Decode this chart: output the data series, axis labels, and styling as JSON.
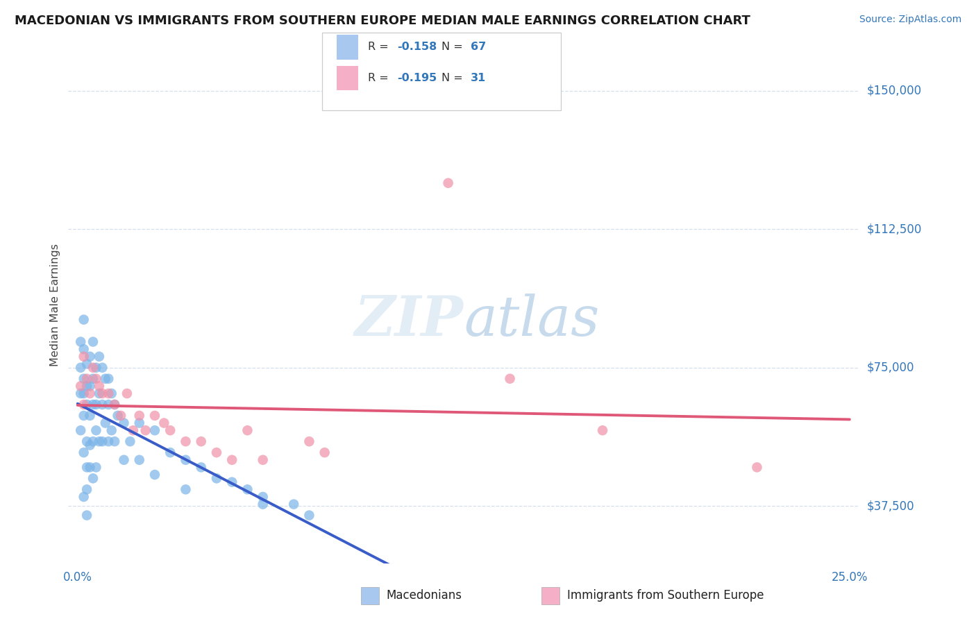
{
  "title": "MACEDONIAN VS IMMIGRANTS FROM SOUTHERN EUROPE MEDIAN MALE EARNINGS CORRELATION CHART",
  "source": "Source: ZipAtlas.com",
  "ylabel": "Median Male Earnings",
  "ytick_values": [
    37500,
    75000,
    112500,
    150000
  ],
  "ytick_labels": [
    "$37,500",
    "$75,000",
    "$112,500",
    "$150,000"
  ],
  "xlim": [
    0.0,
    0.25
  ],
  "ylim": [
    22000,
    162000
  ],
  "legend_color_mac": "#a8c8f0",
  "legend_color_imm": "#f5b0c8",
  "macedonian_color": "#7ab4e8",
  "immigrant_color": "#f090a8",
  "trendline_mac_solid": "#3a5cc8",
  "trendline_imm_solid": "#e05878",
  "trendline_dashed": "#90b8e0",
  "label_mac": "Macedonians",
  "label_imm": "Immigrants from Southern Europe",
  "mac_x": [
    0.001,
    0.001,
    0.001,
    0.001,
    0.002,
    0.002,
    0.002,
    0.002,
    0.002,
    0.002,
    0.002,
    0.003,
    0.003,
    0.003,
    0.003,
    0.003,
    0.003,
    0.003,
    0.004,
    0.004,
    0.004,
    0.004,
    0.004,
    0.005,
    0.005,
    0.005,
    0.005,
    0.005,
    0.006,
    0.006,
    0.006,
    0.006,
    0.007,
    0.007,
    0.007,
    0.008,
    0.008,
    0.008,
    0.009,
    0.009,
    0.01,
    0.01,
    0.01,
    0.011,
    0.011,
    0.012,
    0.012,
    0.013,
    0.015,
    0.015,
    0.017,
    0.02,
    0.02,
    0.025,
    0.025,
    0.03,
    0.035,
    0.035,
    0.04,
    0.045,
    0.05,
    0.055,
    0.06,
    0.06,
    0.07,
    0.075
  ],
  "mac_y": [
    68000,
    75000,
    82000,
    58000,
    72000,
    80000,
    88000,
    62000,
    68000,
    52000,
    40000,
    70000,
    76000,
    65000,
    55000,
    48000,
    42000,
    35000,
    78000,
    70000,
    62000,
    54000,
    48000,
    82000,
    72000,
    65000,
    55000,
    45000,
    75000,
    65000,
    58000,
    48000,
    78000,
    68000,
    55000,
    75000,
    65000,
    55000,
    72000,
    60000,
    72000,
    65000,
    55000,
    68000,
    58000,
    65000,
    55000,
    62000,
    60000,
    50000,
    55000,
    60000,
    50000,
    58000,
    46000,
    52000,
    50000,
    42000,
    48000,
    45000,
    44000,
    42000,
    40000,
    38000,
    38000,
    35000
  ],
  "imm_x": [
    0.001,
    0.002,
    0.002,
    0.003,
    0.004,
    0.005,
    0.006,
    0.007,
    0.008,
    0.01,
    0.012,
    0.014,
    0.016,
    0.018,
    0.02,
    0.022,
    0.025,
    0.028,
    0.03,
    0.035,
    0.04,
    0.045,
    0.05,
    0.055,
    0.06,
    0.075,
    0.08,
    0.12,
    0.14,
    0.17,
    0.22
  ],
  "imm_y": [
    70000,
    78000,
    65000,
    72000,
    68000,
    75000,
    72000,
    70000,
    68000,
    68000,
    65000,
    62000,
    68000,
    58000,
    62000,
    58000,
    62000,
    60000,
    58000,
    55000,
    55000,
    52000,
    50000,
    58000,
    50000,
    55000,
    52000,
    125000,
    72000,
    58000,
    48000
  ]
}
